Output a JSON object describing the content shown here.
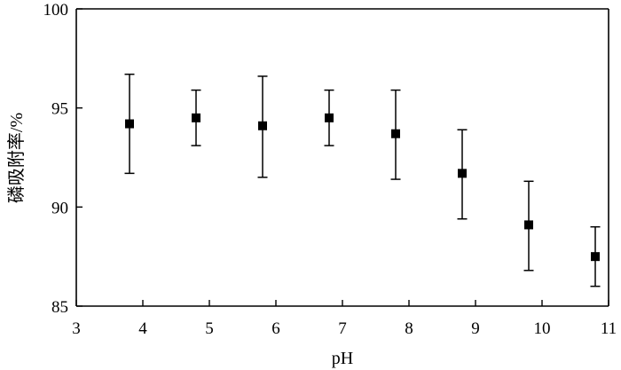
{
  "chart_data": {
    "type": "scatter",
    "title": "",
    "xlabel": "pH",
    "ylabel": "磷吸附率/%",
    "xlim": [
      3,
      11
    ],
    "ylim": [
      85,
      100
    ],
    "xticks": [
      3,
      4,
      5,
      6,
      7,
      8,
      9,
      10,
      11
    ],
    "yticks": [
      85,
      90,
      95,
      100
    ],
    "grid": false,
    "marker": "square",
    "marker_color": "#000000",
    "error_bars": true,
    "series": [
      {
        "x": [
          3.8,
          4.8,
          5.8,
          6.8,
          7.8,
          8.8,
          9.8,
          10.8
        ],
        "y": [
          94.2,
          94.5,
          94.1,
          94.5,
          93.7,
          91.7,
          89.1,
          87.5
        ],
        "err_low": [
          91.7,
          93.1,
          91.5,
          93.1,
          91.4,
          89.4,
          86.8,
          86.0
        ],
        "err_high": [
          96.7,
          95.9,
          96.6,
          95.9,
          95.9,
          93.9,
          91.3,
          89.0
        ]
      }
    ]
  }
}
